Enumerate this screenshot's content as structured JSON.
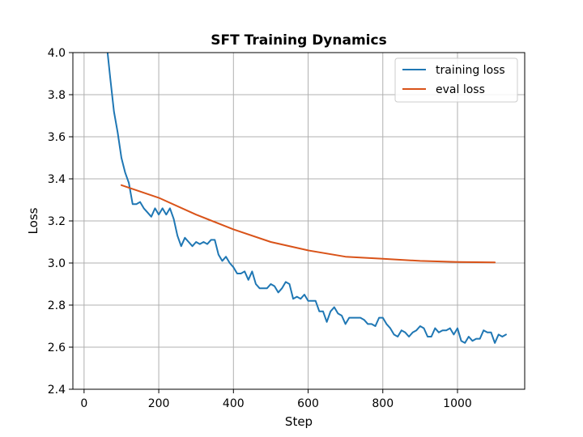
{
  "chart_data": {
    "type": "line",
    "title": "SFT Training Dynamics",
    "xlabel": "Step",
    "ylabel": "Loss",
    "xlim": [
      -30,
      1180
    ],
    "ylim": [
      2.4,
      4.0
    ],
    "xticks": [
      0,
      200,
      400,
      600,
      800,
      1000
    ],
    "yticks": [
      2.4,
      2.6,
      2.8,
      3.0,
      3.2,
      3.4,
      3.6,
      3.8,
      4.0
    ],
    "xtick_labels": [
      "0",
      "200",
      "400",
      "600",
      "800",
      "1000"
    ],
    "ytick_labels": [
      "2.4",
      "2.6",
      "2.8",
      "3.0",
      "3.2",
      "3.4",
      "3.6",
      "3.8",
      "4.0"
    ],
    "grid": true,
    "legend_position": "top-right",
    "series": [
      {
        "name": "training loss",
        "color": "#1f77b4",
        "x": [
          60,
          70,
          80,
          90,
          100,
          110,
          120,
          130,
          140,
          150,
          160,
          170,
          180,
          190,
          200,
          210,
          220,
          230,
          240,
          250,
          260,
          270,
          280,
          290,
          300,
          310,
          320,
          330,
          340,
          350,
          360,
          370,
          380,
          390,
          400,
          410,
          420,
          430,
          440,
          450,
          460,
          470,
          480,
          490,
          500,
          510,
          520,
          530,
          540,
          550,
          560,
          570,
          580,
          590,
          600,
          610,
          620,
          630,
          640,
          650,
          660,
          670,
          680,
          690,
          700,
          710,
          720,
          730,
          740,
          750,
          760,
          770,
          780,
          790,
          800,
          810,
          820,
          830,
          840,
          850,
          860,
          870,
          880,
          890,
          900,
          910,
          920,
          930,
          940,
          950,
          960,
          970,
          980,
          990,
          1000,
          1010,
          1020,
          1030,
          1040,
          1050,
          1060,
          1070,
          1080,
          1090,
          1100,
          1110,
          1120,
          1130
        ],
        "y": [
          4.05,
          3.88,
          3.72,
          3.62,
          3.5,
          3.43,
          3.38,
          3.28,
          3.28,
          3.29,
          3.26,
          3.24,
          3.22,
          3.26,
          3.23,
          3.26,
          3.23,
          3.26,
          3.21,
          3.13,
          3.08,
          3.12,
          3.1,
          3.08,
          3.1,
          3.09,
          3.1,
          3.09,
          3.11,
          3.11,
          3.04,
          3.01,
          3.03,
          3.0,
          2.98,
          2.95,
          2.95,
          2.96,
          2.92,
          2.96,
          2.9,
          2.88,
          2.88,
          2.88,
          2.9,
          2.89,
          2.86,
          2.88,
          2.91,
          2.9,
          2.83,
          2.84,
          2.83,
          2.85,
          2.82,
          2.82,
          2.82,
          2.77,
          2.77,
          2.72,
          2.77,
          2.79,
          2.76,
          2.75,
          2.71,
          2.74,
          2.74,
          2.74,
          2.74,
          2.73,
          2.71,
          2.71,
          2.7,
          2.74,
          2.74,
          2.71,
          2.69,
          2.66,
          2.65,
          2.68,
          2.67,
          2.65,
          2.67,
          2.68,
          2.7,
          2.69,
          2.65,
          2.65,
          2.69,
          2.67,
          2.68,
          2.68,
          2.69,
          2.66,
          2.69,
          2.63,
          2.62,
          2.65,
          2.63,
          2.64,
          2.64,
          2.68,
          2.67,
          2.67,
          2.62,
          2.66,
          2.65,
          2.66
        ]
      },
      {
        "name": "eval loss",
        "color": "#d95319",
        "x": [
          100,
          200,
          300,
          400,
          500,
          600,
          700,
          800,
          900,
          1000,
          1100
        ],
        "y": [
          3.37,
          3.31,
          3.23,
          3.16,
          3.1,
          3.06,
          3.03,
          3.02,
          3.01,
          3.005,
          3.003
        ]
      }
    ]
  }
}
